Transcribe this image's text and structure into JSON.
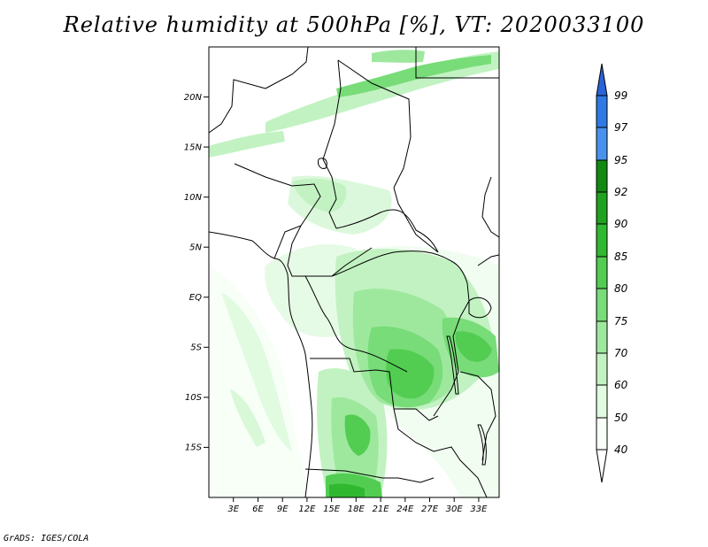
{
  "title": "Relative humidity at 500hPa [%], VT: 2020033100",
  "credit": "GrADS: IGES/COLA",
  "map": {
    "lat_labels": [
      "20N",
      "15N",
      "10N",
      "5N",
      "EQ",
      "5S",
      "10S",
      "15S"
    ],
    "lon_labels": [
      "3E",
      "6E",
      "9E",
      "12E",
      "15E",
      "18E",
      "21E",
      "24E",
      "27E",
      "30E",
      "33E"
    ],
    "lat_range": [
      -20,
      25
    ],
    "lon_range": [
      0,
      35.5
    ]
  },
  "colorbar": {
    "levels": [
      "99",
      "97",
      "95",
      "92",
      "90",
      "85",
      "80",
      "75",
      "70",
      "60",
      "50",
      "40"
    ],
    "colors": {
      "b99": "#2a63d8",
      "b97": "#2f79e3",
      "b95": "#4892ee",
      "b92": "#128a12",
      "b90": "#1fa21f",
      "b85": "#30b830",
      "b80": "#52cd52",
      "b75": "#78dc78",
      "b70": "#9ee89e",
      "b60": "#c2f2c2",
      "b50": "#e0fbe0",
      "b40": "#f7fff7"
    }
  }
}
